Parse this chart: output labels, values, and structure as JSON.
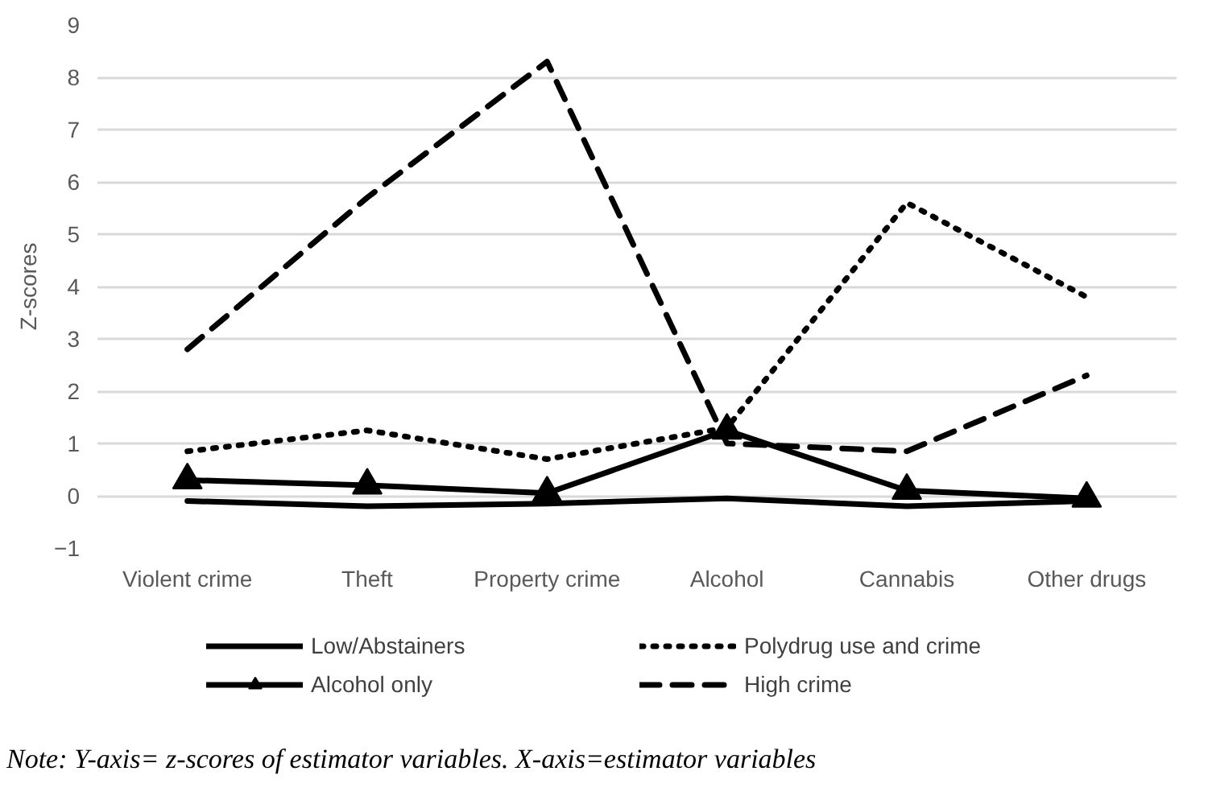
{
  "chart_data": {
    "type": "line",
    "ylabel": "Z-scores",
    "categories": [
      "Violent crime",
      "Theft",
      "Property crime",
      "Alcohol",
      "Cannabis",
      "Other drugs"
    ],
    "series": [
      {
        "name": "Low/Abstainers",
        "color": "#000000",
        "line_style": "solid",
        "marker": "none",
        "values": [
          -0.1,
          -0.2,
          -0.15,
          -0.05,
          -0.2,
          -0.1
        ]
      },
      {
        "name": "Alcohol only",
        "color": "#000000",
        "line_style": "solid",
        "marker": "triangle",
        "values": [
          0.3,
          0.2,
          0.05,
          1.25,
          0.1,
          -0.05
        ]
      },
      {
        "name": "Polydrug use and crime",
        "color": "#000000",
        "line_style": "dotted",
        "marker": "none",
        "values": [
          0.85,
          1.25,
          0.7,
          1.3,
          5.6,
          3.8
        ]
      },
      {
        "name": "High crime",
        "color": "#000000",
        "line_style": "dashed",
        "marker": "none",
        "values": [
          2.8,
          5.7,
          8.3,
          1.0,
          0.85,
          2.3
        ]
      }
    ],
    "ylim": [
      -1,
      9
    ],
    "yticks": [
      -1,
      0,
      1,
      2,
      3,
      4,
      5,
      6,
      7,
      8,
      9
    ],
    "grid": "y",
    "legend": "bottom",
    "annotations": [
      "Note: Y-axis= z-scores of estimator variables. X-axis=estimator variables"
    ]
  }
}
